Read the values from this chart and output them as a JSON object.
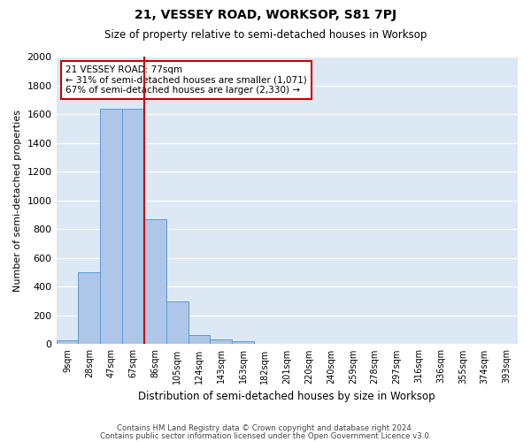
{
  "title": "21, VESSEY ROAD, WORKSOP, S81 7PJ",
  "subtitle": "Size of property relative to semi-detached houses in Worksop",
  "xlabel": "Distribution of semi-detached houses by size in Worksop",
  "ylabel": "Number of semi-detached properties",
  "bin_labels": [
    "9sqm",
    "28sqm",
    "47sqm",
    "67sqm",
    "86sqm",
    "105sqm",
    "124sqm",
    "143sqm",
    "163sqm",
    "182sqm",
    "201sqm",
    "220sqm",
    "240sqm",
    "259sqm",
    "278sqm",
    "297sqm",
    "316sqm",
    "336sqm",
    "355sqm",
    "374sqm",
    "393sqm"
  ],
  "bar_values": [
    30,
    500,
    1640,
    1640,
    870,
    300,
    65,
    35,
    20,
    5,
    5,
    0,
    0,
    0,
    0,
    0,
    0,
    0,
    0,
    0,
    0
  ],
  "bar_color": "#aec6e8",
  "bar_edge_color": "#5b9bd5",
  "vline_x_index": 3,
  "vline_color": "#cc0000",
  "annotation_title": "21 VESSEY ROAD: 77sqm",
  "annotation_line1": "← 31% of semi-detached houses are smaller (1,071)",
  "annotation_line2": "67% of semi-detached houses are larger (2,330) →",
  "annotation_box_color": "#cc0000",
  "ylim": [
    0,
    2000
  ],
  "yticks": [
    0,
    200,
    400,
    600,
    800,
    1000,
    1200,
    1400,
    1600,
    1800,
    2000
  ],
  "footer_line1": "Contains HM Land Registry data © Crown copyright and database right 2024.",
  "footer_line2": "Contains public sector information licensed under the Open Government Licence v3.0.",
  "background_color": "#dde8f5",
  "plot_background": "#ffffff"
}
